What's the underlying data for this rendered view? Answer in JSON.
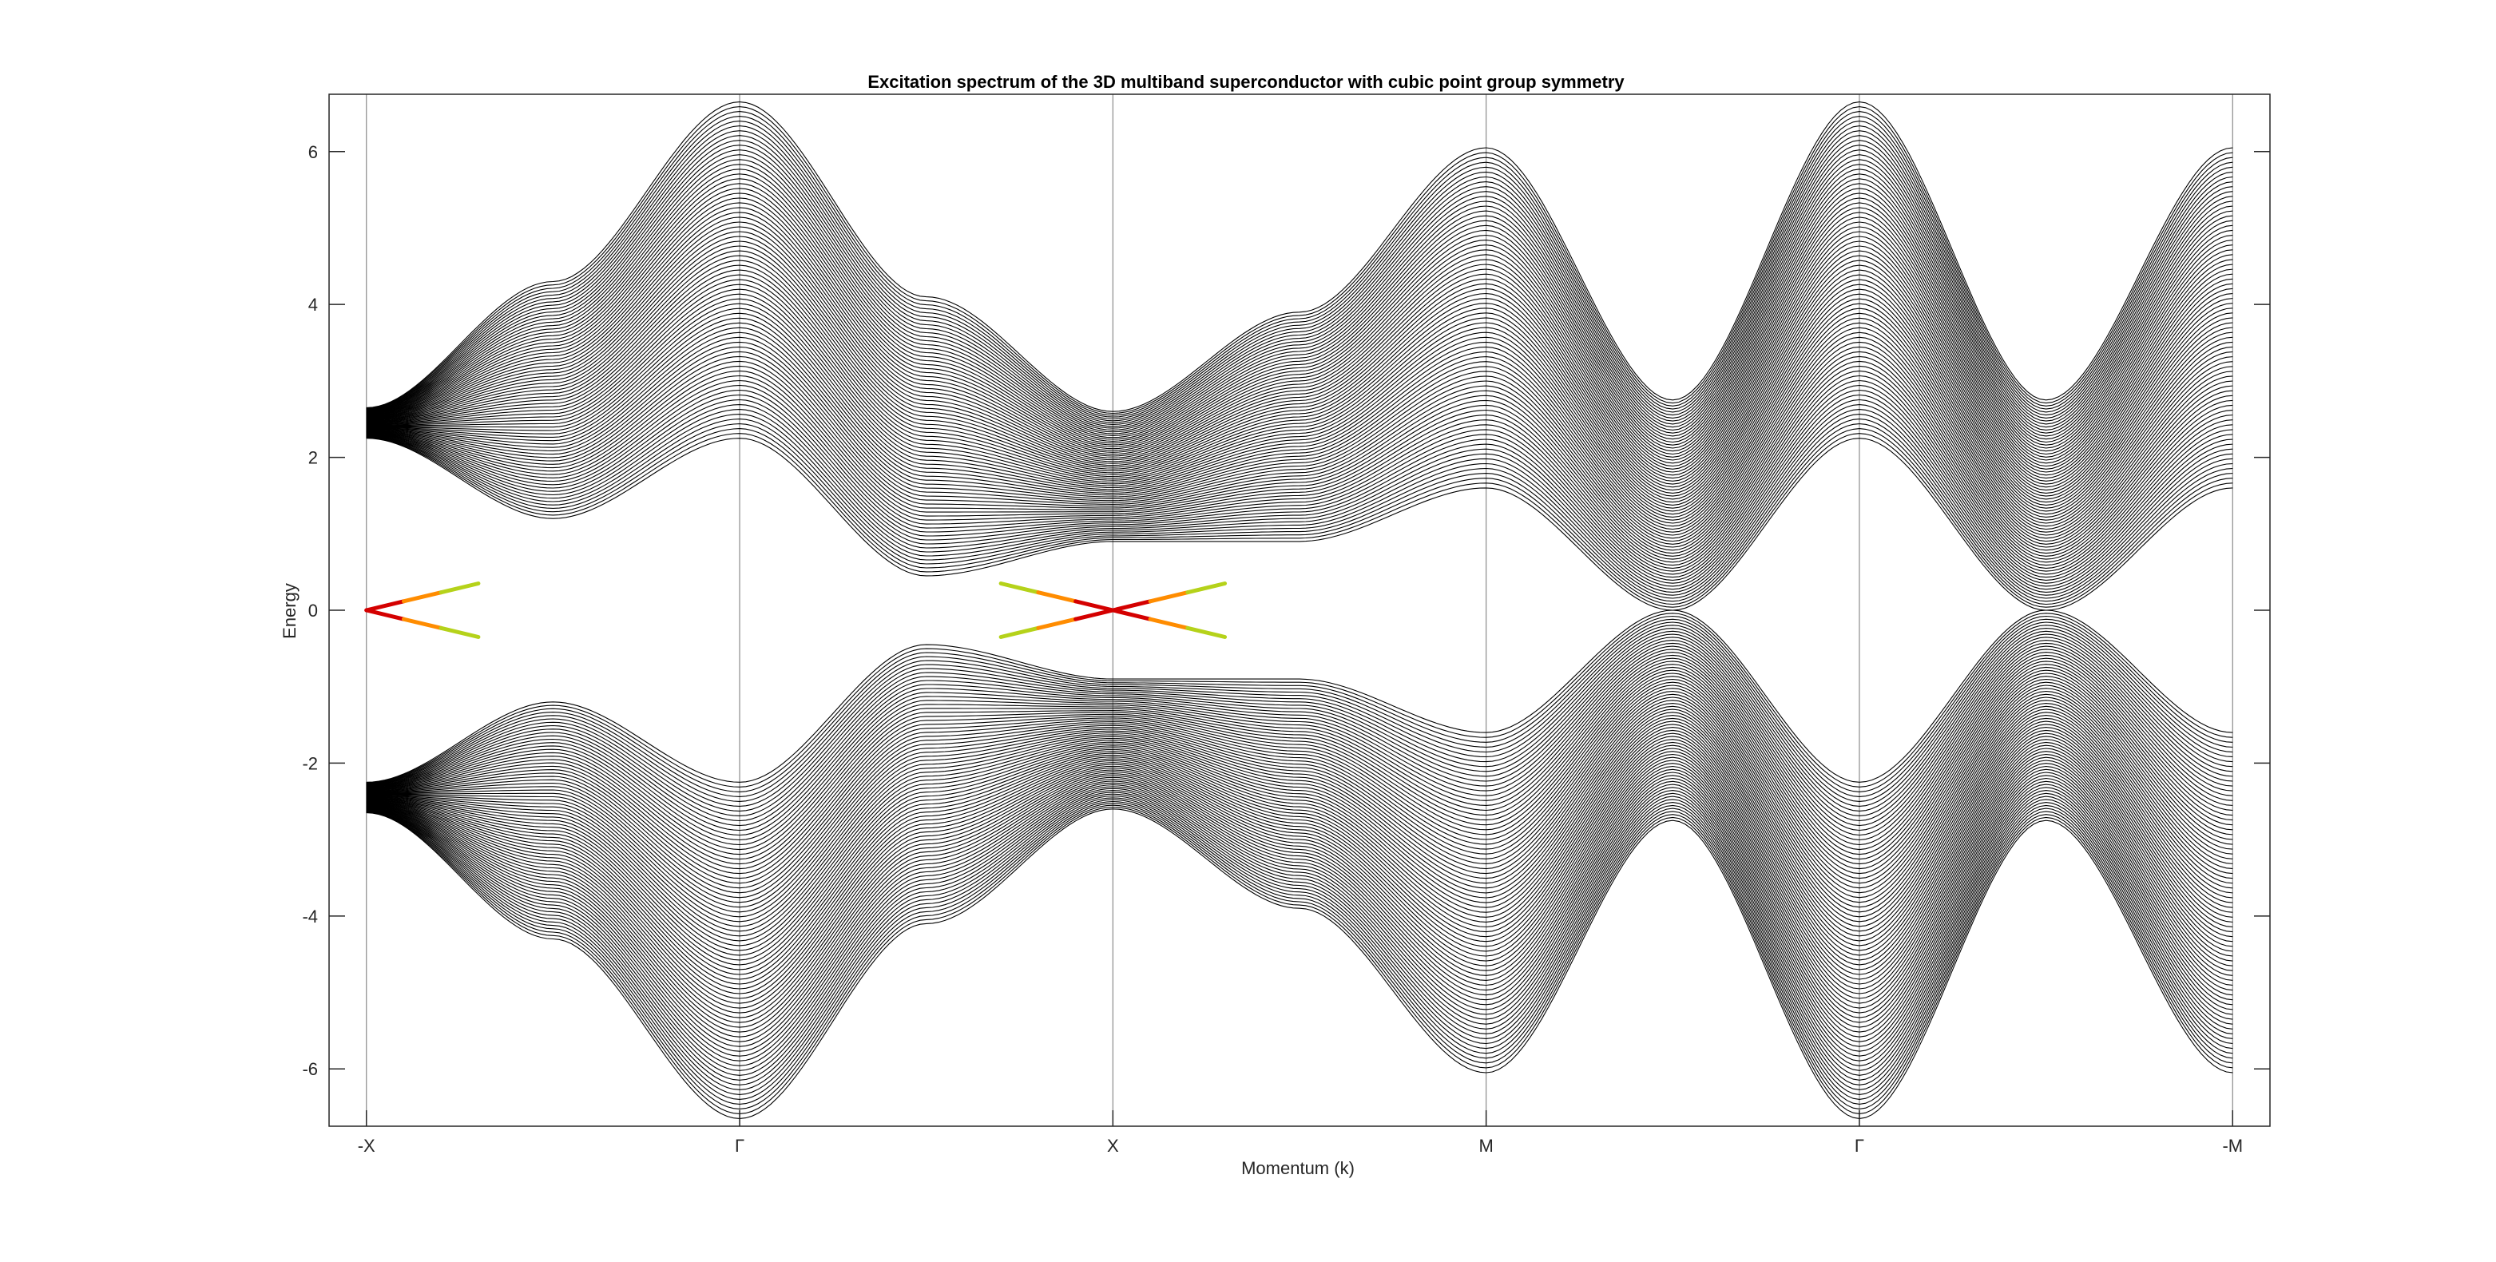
{
  "chart_data": {
    "type": "line",
    "title": "Excitation spectrum of the 3D multiband superconductor with cubic point group symmetry",
    "xlabel": "Momentum (k)",
    "ylabel": "Energy",
    "ylim": [
      -6.75,
      6.75
    ],
    "yticks": [
      -6,
      -4,
      -2,
      0,
      2,
      4,
      6
    ],
    "ytick_labels": [
      "-6",
      "-4",
      "-2",
      "0",
      "2",
      "4",
      "6"
    ],
    "xticks": [
      0,
      1,
      2,
      3,
      4,
      5
    ],
    "xtick_labels": [
      "-X",
      "Γ",
      "X",
      "M",
      "Γ",
      "-M"
    ],
    "xlim": [
      -0.1,
      5.1
    ],
    "grid": "vertical lines at high-symmetry points",
    "legend": "none",
    "colors": {
      "bands": "#000000",
      "surface_state_gap": "#d40000",
      "surface_state_mid": "#ff8c00",
      "surface_state_edge": "#b5d21a"
    },
    "series": [
      {
        "x": [
          0,
          0.5,
          1,
          1.5,
          2
        ],
        "values": [
          2.65,
          4.3,
          6.65,
          4.1,
          2.6
        ]
      },
      {
        "x": [
          0,
          0.5,
          1,
          1.5,
          2
        ],
        "values": [
          2.25,
          1.2,
          2.25,
          0.45,
          0.9
        ]
      },
      {
        "x": [
          0,
          0.5,
          1,
          1.5,
          2
        ],
        "values": [
          0.9,
          0.5,
          2.25,
          0.5,
          0.9
        ]
      },
      {
        "x": [
          2,
          2.5,
          3,
          3.5,
          4,
          4.5,
          5
        ],
        "values": [
          2.6,
          3.9,
          6.05,
          2.75,
          6.65,
          2.75,
          6.05
        ]
      },
      {
        "x": [
          2,
          2.5,
          3,
          3.5,
          4,
          4.5,
          5
        ],
        "values": [
          0.9,
          0.9,
          1.6,
          0.0,
          2.25,
          0.0,
          1.6
        ]
      },
      {
        "x": [
          0,
          0.3,
          1.7,
          2,
          2.3
        ],
        "values": [
          0,
          0.35,
          0.35,
          0,
          0.35
        ]
      }
    ]
  }
}
